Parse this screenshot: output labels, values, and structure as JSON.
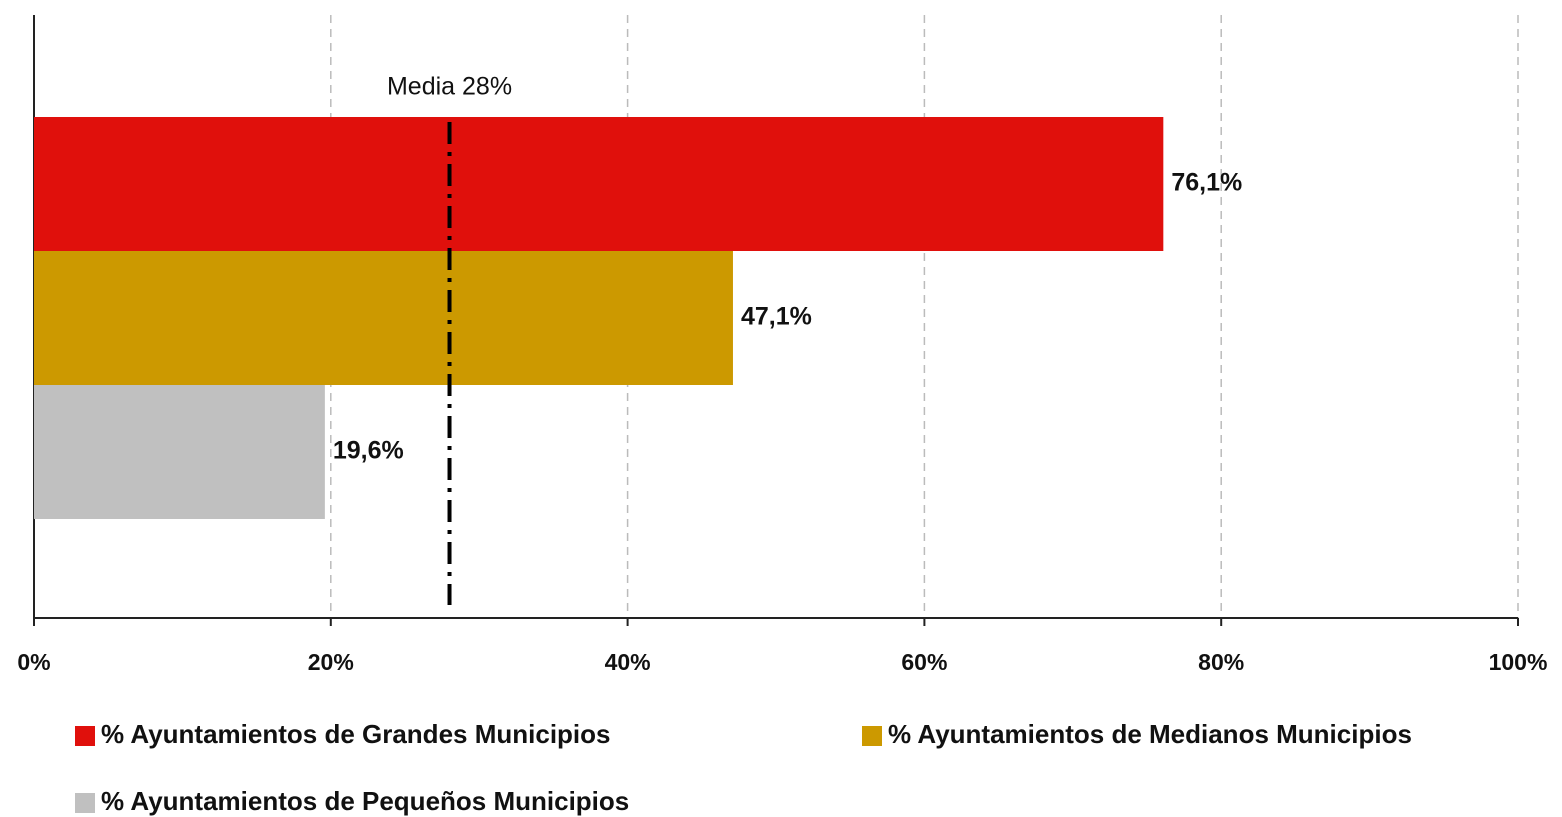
{
  "chart_data": {
    "type": "bar",
    "orientation": "horizontal",
    "series": [
      {
        "name": "% Ayuntamientos de Grandes Municipios",
        "color": "#e0100c",
        "values": [
          76.1
        ],
        "value_labels": [
          "76,1%"
        ]
      },
      {
        "name": "% Ayuntamientos de Medianos Municipios",
        "color": "#cc9900",
        "values": [
          47.1
        ],
        "value_labels": [
          "47,1%"
        ]
      },
      {
        "name": "% Ayuntamientos de Pequeños Municipios",
        "color": "#c0c0c0",
        "values": [
          19.6
        ],
        "value_labels": [
          "19,6%"
        ]
      }
    ],
    "xlim": [
      0,
      100
    ],
    "xticks": [
      {
        "value": 0,
        "label": "0%"
      },
      {
        "value": 20,
        "label": "20%"
      },
      {
        "value": 40,
        "label": "40%"
      },
      {
        "value": 60,
        "label": "60%"
      },
      {
        "value": 80,
        "label": "80%"
      },
      {
        "value": 100,
        "label": "100%"
      }
    ],
    "grid": true,
    "annotation": {
      "label": "Media 28%",
      "value": 28
    },
    "legend": "bottom"
  }
}
